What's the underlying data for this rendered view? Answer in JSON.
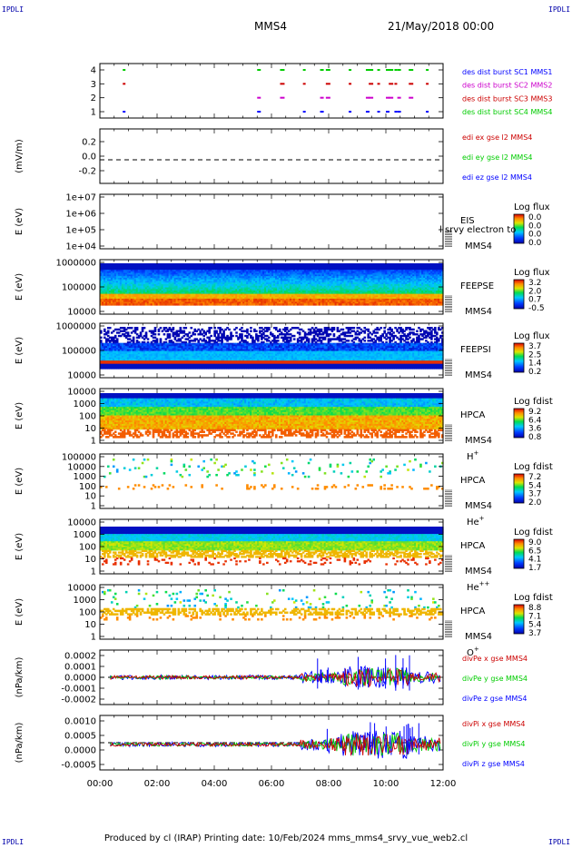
{
  "corner_label": "IPDLI",
  "header": {
    "spacecraft": "MMS4",
    "datetime": "21/May/2018 00:00"
  },
  "footer": "Produced by cl (IRAP)   Printing date: 10/Feb/2024   mms_mms4_srvy_vue_web2.cl",
  "colors": {
    "blue": "#0000ff",
    "green": "#00cc00",
    "red": "#ff0000",
    "magenta": "#cc00cc",
    "dark_red": "#cc0000"
  },
  "chart_data": {
    "type": "multi-panel spectrogram and line plot",
    "x_range": [
      "00:00",
      "12:00"
    ],
    "x_ticks": [
      "00:00",
      "02:00",
      "04:00",
      "06:00",
      "08:00",
      "10:00",
      "12:00"
    ],
    "panels": [
      {
        "id": "burst",
        "type": "event",
        "yticks": [
          "4",
          "3",
          "2",
          "1"
        ],
        "legend": [
          {
            "text": "des dist burst SC1 MMS1",
            "color": "#0000ff"
          },
          {
            "text": "des dist burst SC2 MMS2",
            "color": "#cc00cc"
          },
          {
            "text": "des dist burst SC3 MMS3",
            "color": "#cc0000"
          },
          {
            "text": "des dist burst SC4 MMS4",
            "color": "#00cc00"
          }
        ],
        "burst_hours": [
          0.8,
          5.5,
          6.3,
          7.1,
          7.7,
          7.9,
          8.7,
          9.3,
          9.4,
          9.7,
          10.0,
          10.1,
          10.3,
          10.4,
          10.8,
          11.4
        ]
      },
      {
        "id": "edi",
        "type": "line",
        "ylabel": "(mV/m)",
        "yticks": [
          "0.2",
          "0.0",
          "-0.2"
        ],
        "ylim": [
          -0.3,
          0.3
        ],
        "legend": [
          {
            "text": "edi ex gse l2 MMS4",
            "color": "#cc0000"
          },
          {
            "text": "edi ey gse l2 MMS4",
            "color": "#00cc00"
          },
          {
            "text": "edi ez gse l2 MMS4",
            "color": "#0000ff"
          }
        ]
      },
      {
        "id": "eis",
        "type": "spectrogram",
        "ylabel": "E (eV)",
        "yticks": [
          "1e+07",
          "1e+06",
          "1e+05",
          "1e+04"
        ],
        "inst": [
          "EIS",
          "MMS4"
        ],
        "overlay": "l srvy electron to",
        "cbar_title": "Log flux",
        "cbar_ticks": [
          "0.0",
          "0.0",
          "0.0",
          "0.0"
        ],
        "empty": true
      },
      {
        "id": "feepse",
        "type": "spectrogram",
        "ylabel": "E (eV)",
        "yticks": [
          "1000000",
          "100000",
          "10000"
        ],
        "inst": [
          "FEEPSE",
          "MMS4"
        ],
        "cbar_title": "Log flux",
        "cbar_ticks": [
          "3.2",
          "2.0",
          "0.7",
          "-0.5"
        ]
      },
      {
        "id": "feepsi",
        "type": "spectrogram",
        "ylabel": "E (eV)",
        "yticks": [
          "1000000",
          "100000",
          "10000"
        ],
        "inst": [
          "FEEPSI",
          "MMS4"
        ],
        "cbar_title": "Log flux",
        "cbar_ticks": [
          "3.7",
          "2.5",
          "1.4",
          "0.2"
        ]
      },
      {
        "id": "hpca_h",
        "type": "spectrogram",
        "ylabel": "E (eV)",
        "yticks": [
          "10000",
          "1000",
          "100",
          "10",
          "1"
        ],
        "inst": [
          "HPCA",
          "MMS4"
        ],
        "species": "H",
        "charge": "+",
        "cbar_title": "Log fdist",
        "cbar_ticks": [
          "9.2",
          "6.4",
          "3.6",
          "0.8"
        ]
      },
      {
        "id": "hpca_he1",
        "type": "spectrogram",
        "ylabel": "E (eV)",
        "yticks": [
          "100000",
          "10000",
          "1000",
          "100",
          "10",
          "1"
        ],
        "inst": [
          "HPCA",
          "MMS4"
        ],
        "species": "He",
        "charge": "+",
        "cbar_title": "Log fdist",
        "cbar_ticks": [
          "7.2",
          "5.4",
          "3.7",
          "2.0"
        ]
      },
      {
        "id": "hpca_he2",
        "type": "spectrogram",
        "ylabel": "E (eV)",
        "yticks": [
          "10000",
          "1000",
          "100",
          "10",
          "1"
        ],
        "inst": [
          "HPCA",
          "MMS4"
        ],
        "species": "He",
        "charge": "++",
        "cbar_title": "Log fdist",
        "cbar_ticks": [
          "9.0",
          "6.5",
          "4.1",
          "1.7"
        ]
      },
      {
        "id": "hpca_o",
        "type": "spectrogram",
        "ylabel": "E (eV)",
        "yticks": [
          "10000",
          "1000",
          "100",
          "10",
          "1"
        ],
        "inst": [
          "HPCA",
          "MMS4"
        ],
        "species": "O",
        "charge": "+",
        "cbar_title": "Log fdist",
        "cbar_ticks": [
          "8.8",
          "7.1",
          "5.4",
          "3.7"
        ]
      },
      {
        "id": "divpe",
        "type": "line",
        "ylabel": "(nPa/km)",
        "yticks": [
          "0.0002",
          "0.0001",
          "0.0000",
          "-0.0001",
          "-0.0002"
        ],
        "ylim": [
          -0.00025,
          0.00022
        ],
        "legend": [
          {
            "text": "divPe x gse MMS4",
            "color": "#cc0000"
          },
          {
            "text": "divPe y gse MMS4",
            "color": "#00cc00"
          },
          {
            "text": "divPe z gse MMS4",
            "color": "#0000ff"
          }
        ]
      },
      {
        "id": "divpi",
        "type": "line",
        "ylabel": "(nPa/km)",
        "yticks": [
          "0.0010",
          "0.0005",
          "0.0000",
          "-0.0005"
        ],
        "ylim": [
          -0.0008,
          0.0012
        ],
        "legend": [
          {
            "text": "divPi x gse MMS4",
            "color": "#cc0000"
          },
          {
            "text": "divPi y gse MMS4",
            "color": "#00cc00"
          },
          {
            "text": "divPi z gse MMS4",
            "color": "#0000ff"
          }
        ]
      }
    ]
  }
}
